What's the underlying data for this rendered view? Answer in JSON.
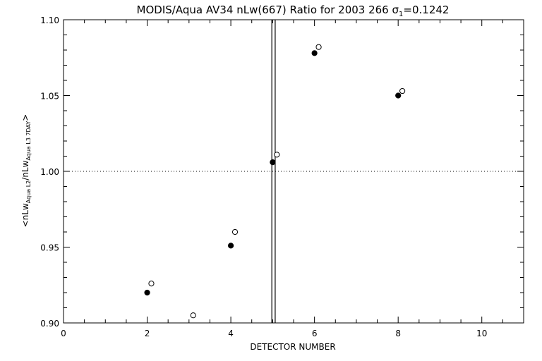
{
  "chart_data": {
    "type": "scatter",
    "title": "MODIS/Aqua AV34 nLw(667) Ratio for 2003 266 σ",
    "title_sigma_sub": "1",
    "title_suffix": "=0.1242",
    "xlabel": "DETECTOR NUMBER",
    "ylabel": {
      "open": "<nLw",
      "sub1": "Aqua L2",
      "mid": "/nLw",
      "sub2": "Aqua L3 7DAY",
      "close": ">"
    },
    "xlim": [
      0,
      11
    ],
    "ylim": [
      0.9,
      1.1
    ],
    "x_ticks": [
      0,
      2,
      4,
      6,
      8,
      10
    ],
    "x_tick_labels": [
      "0",
      "2",
      "4",
      "6",
      "8",
      "10"
    ],
    "y_ticks": [
      0.9,
      0.95,
      1.0,
      1.05,
      1.1
    ],
    "y_tick_labels": [
      "0.90",
      "0.95",
      "1.00",
      "1.05",
      "1.10"
    ],
    "reference_line_y": 1.0,
    "vertical_lines_x": [
      4.98,
      5.06
    ],
    "series": [
      {
        "marker": "filled-circle",
        "x": [
          2,
          4,
          5,
          6,
          8
        ],
        "y": [
          0.92,
          0.951,
          1.006,
          1.078,
          1.05
        ]
      },
      {
        "marker": "open-circle",
        "x": [
          2.1,
          3.1,
          4.1,
          5.1,
          6.1,
          8.1
        ],
        "y": [
          0.926,
          0.905,
          0.96,
          1.011,
          1.082,
          1.053
        ]
      }
    ],
    "grid": false,
    "colors": {
      "foreground": "#000000",
      "background": "#ffffff"
    }
  }
}
